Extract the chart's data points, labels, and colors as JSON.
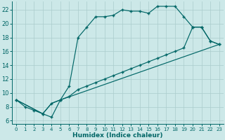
{
  "xlabel": "Humidex (Indice chaleur)",
  "bg_color": "#cce8e8",
  "line_color": "#006666",
  "grid_color": "#aacccc",
  "xlim": [
    -0.5,
    23.5
  ],
  "ylim": [
    5.5,
    23.2
  ],
  "xticks": [
    0,
    1,
    2,
    3,
    4,
    5,
    6,
    7,
    8,
    9,
    10,
    11,
    12,
    13,
    14,
    15,
    16,
    17,
    18,
    19,
    20,
    21,
    22,
    23
  ],
  "yticks": [
    6,
    8,
    10,
    12,
    14,
    16,
    18,
    20,
    22
  ],
  "curve1_x": [
    0,
    1,
    2,
    3,
    4,
    5,
    6,
    7,
    8,
    9,
    10,
    11,
    12,
    13,
    14,
    15,
    16,
    17,
    18,
    19,
    20,
    21,
    22,
    23
  ],
  "curve1_y": [
    9,
    8,
    7.5,
    7,
    6.5,
    9.0,
    11.0,
    18.0,
    19.5,
    21.0,
    21.0,
    21.2,
    22.0,
    21.8,
    21.8,
    21.5,
    22.5,
    22.5,
    22.5,
    21.0,
    19.5,
    19.5,
    17.5,
    17.0
  ],
  "curve2_x": [
    0,
    3,
    4,
    5,
    6,
    7,
    8,
    9,
    10,
    11,
    12,
    13,
    14,
    15,
    16,
    17,
    18,
    19,
    20,
    21,
    22,
    23
  ],
  "curve2_y": [
    9,
    7,
    8.5,
    9.0,
    9.5,
    10.5,
    11.0,
    11.5,
    12.0,
    12.5,
    13.0,
    13.5,
    14.0,
    14.5,
    15.0,
    15.5,
    16.0,
    16.5,
    19.5,
    19.5,
    17.5,
    17.0
  ],
  "curve3_x": [
    0,
    3,
    4,
    5,
    23
  ],
  "curve3_y": [
    9,
    7,
    8.5,
    9.0,
    17.0
  ]
}
